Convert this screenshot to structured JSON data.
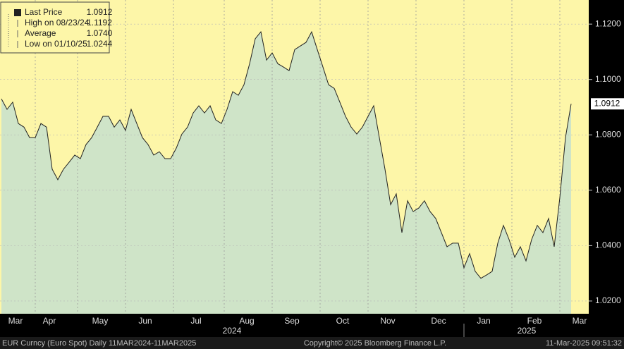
{
  "chart_data": {
    "type": "area",
    "categories": [
      null,
      null,
      null,
      "Mar",
      null,
      null,
      null,
      null,
      null,
      "Apr",
      null,
      null,
      null,
      null,
      null,
      null,
      null,
      null,
      "May",
      null,
      null,
      null,
      null,
      null,
      null,
      null,
      "Jun",
      null,
      null,
      null,
      null,
      null,
      null,
      null,
      null,
      "Jul",
      null,
      null,
      null,
      null,
      null,
      null,
      null,
      null,
      "Aug",
      null,
      null,
      null,
      null,
      null,
      null,
      null,
      "Sep",
      null,
      null,
      null,
      null,
      null,
      null,
      null,
      null,
      "Oct",
      null,
      null,
      null,
      null,
      null,
      null,
      null,
      "Nov",
      null,
      null,
      null,
      null,
      null,
      null,
      null,
      null,
      "Dec",
      null,
      null,
      null,
      null,
      null,
      null,
      null,
      "Jan",
      null,
      null,
      null,
      null,
      null,
      null,
      null,
      null,
      "Feb",
      null,
      null,
      null,
      null,
      null,
      null,
      null,
      "Mar",
      null
    ],
    "years": [
      "2024",
      "2025"
    ],
    "series": [
      {
        "name": "Last Price",
        "color": "#222222",
        "fill": "#cfe4c8",
        "values": [
          1.093,
          1.0892,
          1.0918,
          1.0841,
          1.0828,
          1.079,
          1.079,
          1.0841,
          1.0828,
          1.0676,
          1.0638,
          1.0676,
          1.0701,
          1.0727,
          1.0714,
          1.0765,
          1.079,
          1.0828,
          1.0867,
          1.0867,
          1.0828,
          1.0854,
          1.0816,
          1.0892,
          1.0841,
          1.079,
          1.0765,
          1.0727,
          1.0739,
          1.0714,
          1.0714,
          1.0752,
          1.0803,
          1.0828,
          1.0879,
          1.0905,
          1.0879,
          1.0905,
          1.0854,
          1.0841,
          1.0892,
          1.0956,
          1.0943,
          1.0981,
          1.1057,
          1.1147,
          1.1172,
          1.107,
          1.1096,
          1.1057,
          1.1045,
          1.1032,
          1.1108,
          1.1121,
          1.1134,
          1.1172,
          1.1108,
          1.1045,
          1.0981,
          1.0968,
          1.0918,
          1.0867,
          1.0828,
          1.0803,
          1.0828,
          1.0867,
          1.0905,
          1.079,
          1.0676,
          1.0548,
          1.0587,
          1.0447,
          1.0562,
          1.0523,
          1.0536,
          1.0562,
          1.0523,
          1.0498,
          1.0447,
          1.0396,
          1.0409,
          1.0409,
          1.032,
          1.0371,
          1.0307,
          1.0282,
          1.0294,
          1.0307,
          1.0409,
          1.0473,
          1.0422,
          1.0358,
          1.0396,
          1.0345,
          1.0422,
          1.0473,
          1.0447,
          1.0498,
          1.0396,
          1.0574,
          1.079,
          1.0912,
          null,
          null,
          null
        ]
      }
    ],
    "last_label": "1.0912",
    "legend_stats": [
      {
        "name": "Last Price",
        "value": "1.0912"
      },
      {
        "name": "High on 08/23/24",
        "value": "1.1192"
      },
      {
        "name": "Average",
        "value": "1.0740"
      },
      {
        "name": "Low on 01/10/25",
        "value": "1.0244"
      }
    ],
    "ylim": [
      1.0154,
      1.1287
    ],
    "yticks": [
      {
        "value": 1.02,
        "label": "1.0200"
      },
      {
        "value": 1.04,
        "label": "1.0400"
      },
      {
        "value": 1.06,
        "label": "1.0600"
      },
      {
        "value": 1.08,
        "label": "1.0800"
      },
      {
        "value": 1.1,
        "label": "1.1000"
      },
      {
        "value": 1.12,
        "label": "1.1200"
      }
    ],
    "grid": true,
    "background": "#fdf6a8",
    "footer": {
      "left": "EUR Curncy (Euro Spot)  Daily 11MAR2024-11MAR2025",
      "center": "Copyright© 2025 Bloomberg Finance L.P.",
      "right": "11-Mar-2025 09:51:32"
    }
  }
}
